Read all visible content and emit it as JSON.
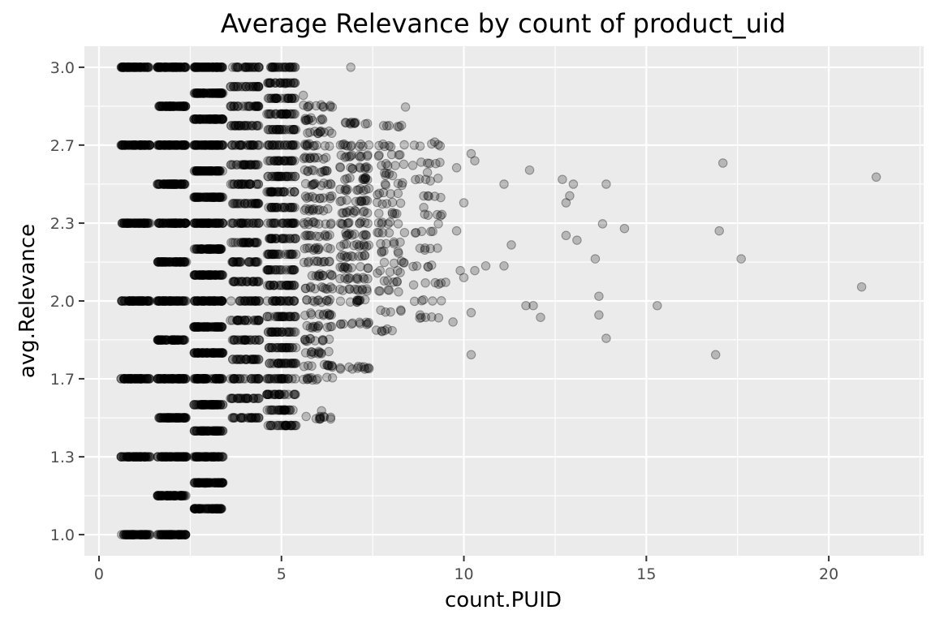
{
  "chart_data": {
    "type": "scatter",
    "title": "Average Relevance by count of product_uid",
    "xlabel": "count.PUID",
    "ylabel": "avg.Relevance",
    "xlim": [
      -0.4,
      22.6
    ],
    "ylim": [
      0.91,
      3.09
    ],
    "x_ticks": [
      0,
      5,
      10,
      15,
      20
    ],
    "x_tick_labels": [
      "0",
      "5",
      "10",
      "15",
      "20"
    ],
    "y_ticks": [
      1.0,
      1.333,
      1.667,
      2.0,
      2.333,
      2.667,
      3.0
    ],
    "y_tick_labels": [
      "1.0",
      "1.3",
      "1.7",
      "2.0",
      "2.3",
      "2.7",
      "3.0"
    ],
    "grid": true,
    "point_color": "#000000",
    "point_opacity": 0.22,
    "jittered_bands": [
      {
        "x_center": 1,
        "levels": [
          1.0,
          1.333,
          1.667,
          2.0,
          2.333,
          2.667,
          3.0
        ],
        "density": "high"
      },
      {
        "x_center": 2,
        "levels": [
          1.0,
          1.167,
          1.333,
          1.5,
          1.667,
          1.833,
          2.0,
          2.167,
          2.333,
          2.5,
          2.667,
          2.833,
          3.0
        ],
        "density": "high"
      },
      {
        "x_center": 3,
        "levels": [
          1.111,
          1.222,
          1.333,
          1.444,
          1.556,
          1.667,
          1.778,
          1.889,
          2.0,
          2.111,
          2.222,
          2.333,
          2.444,
          2.556,
          2.667,
          2.778,
          2.889,
          3.0
        ],
        "density": "high"
      },
      {
        "x_center": 4,
        "levels": [
          1.5,
          1.583,
          1.667,
          1.75,
          1.833,
          1.917,
          2.0,
          2.083,
          2.167,
          2.25,
          2.333,
          2.417,
          2.5,
          2.583,
          2.667,
          2.75,
          2.833,
          2.917,
          3.0
        ],
        "density": "medium"
      },
      {
        "x_center": 5,
        "levels": [
          1.467,
          1.533,
          1.6,
          1.667,
          1.733,
          1.8,
          1.867,
          1.933,
          2.0,
          2.067,
          2.133,
          2.2,
          2.267,
          2.333,
          2.4,
          2.467,
          2.533,
          2.6,
          2.667,
          2.733,
          2.8,
          2.867,
          2.933,
          3.0
        ],
        "density": "medium"
      },
      {
        "x_center": 6,
        "levels": [
          1.5,
          1.667,
          1.722,
          1.778,
          1.833,
          1.889,
          1.944,
          2.0,
          2.056,
          2.111,
          2.167,
          2.222,
          2.278,
          2.333,
          2.389,
          2.444,
          2.5,
          2.556,
          2.611,
          2.667,
          2.722,
          2.778,
          2.833
        ],
        "density": "low"
      },
      {
        "x_center": 7,
        "levels": [
          1.714,
          1.905,
          2.0,
          2.048,
          2.095,
          2.143,
          2.19,
          2.238,
          2.286,
          2.333,
          2.381,
          2.429,
          2.476,
          2.524,
          2.571,
          2.619,
          2.667,
          2.762
        ],
        "density": "low"
      },
      {
        "x_center": 8,
        "levels": [
          1.875,
          1.958,
          2.042,
          2.083,
          2.125,
          2.167,
          2.208,
          2.25,
          2.292,
          2.333,
          2.375,
          2.417,
          2.458,
          2.5,
          2.542,
          2.583,
          2.625,
          2.667,
          2.75
        ],
        "density": "sparse"
      },
      {
        "x_center": 9,
        "levels": [
          1.926,
          2.0,
          2.074,
          2.148,
          2.222,
          2.296,
          2.37,
          2.444,
          2.519,
          2.593,
          2.667
        ],
        "density": "sparse"
      }
    ],
    "points": [
      {
        "x": 5.3,
        "y": 3.0
      },
      {
        "x": 6.9,
        "y": 3.0
      },
      {
        "x": 8.4,
        "y": 2.83
      },
      {
        "x": 7.8,
        "y": 2.75
      },
      {
        "x": 8.0,
        "y": 2.66
      },
      {
        "x": 8.6,
        "y": 2.58
      },
      {
        "x": 9.0,
        "y": 2.55
      },
      {
        "x": 9.2,
        "y": 2.68
      },
      {
        "x": 9.8,
        "y": 2.57
      },
      {
        "x": 10.2,
        "y": 2.63
      },
      {
        "x": 10.3,
        "y": 2.6
      },
      {
        "x": 10.0,
        "y": 2.42
      },
      {
        "x": 9.3,
        "y": 2.33
      },
      {
        "x": 9.8,
        "y": 2.3
      },
      {
        "x": 11.1,
        "y": 2.5
      },
      {
        "x": 11.3,
        "y": 2.24
      },
      {
        "x": 11.8,
        "y": 2.56
      },
      {
        "x": 10.6,
        "y": 2.15
      },
      {
        "x": 11.1,
        "y": 2.15
      },
      {
        "x": 10.3,
        "y": 2.13
      },
      {
        "x": 10.0,
        "y": 2.1
      },
      {
        "x": 9.9,
        "y": 2.13
      },
      {
        "x": 9.5,
        "y": 2.08
      },
      {
        "x": 8.9,
        "y": 2.4
      },
      {
        "x": 8.2,
        "y": 2.33
      },
      {
        "x": 7.9,
        "y": 1.88
      },
      {
        "x": 8.8,
        "y": 1.94
      },
      {
        "x": 9.7,
        "y": 1.91
      },
      {
        "x": 10.2,
        "y": 1.95
      },
      {
        "x": 10.2,
        "y": 1.77
      },
      {
        "x": 11.7,
        "y": 1.98
      },
      {
        "x": 11.9,
        "y": 1.98
      },
      {
        "x": 12.1,
        "y": 1.93
      },
      {
        "x": 12.7,
        "y": 2.52
      },
      {
        "x": 12.9,
        "y": 2.45
      },
      {
        "x": 13.0,
        "y": 2.5
      },
      {
        "x": 12.8,
        "y": 2.42
      },
      {
        "x": 12.8,
        "y": 2.28
      },
      {
        "x": 13.1,
        "y": 2.26
      },
      {
        "x": 13.6,
        "y": 2.18
      },
      {
        "x": 13.7,
        "y": 2.02
      },
      {
        "x": 13.7,
        "y": 1.94
      },
      {
        "x": 13.9,
        "y": 1.84
      },
      {
        "x": 13.9,
        "y": 2.5
      },
      {
        "x": 13.8,
        "y": 2.33
      },
      {
        "x": 14.4,
        "y": 2.31
      },
      {
        "x": 15.3,
        "y": 1.98
      },
      {
        "x": 16.9,
        "y": 1.77
      },
      {
        "x": 17.0,
        "y": 2.3
      },
      {
        "x": 17.1,
        "y": 2.59
      },
      {
        "x": 17.6,
        "y": 2.18
      },
      {
        "x": 20.9,
        "y": 2.06
      },
      {
        "x": 21.3,
        "y": 2.53
      },
      {
        "x": 7.4,
        "y": 1.71
      },
      {
        "x": 6.1,
        "y": 1.53
      },
      {
        "x": 2.9,
        "y": 1.22
      },
      {
        "x": 3.3,
        "y": 1.11
      },
      {
        "x": 3.1,
        "y": 1.11
      },
      {
        "x": 5.1,
        "y": 2.93
      },
      {
        "x": 5.6,
        "y": 2.88
      }
    ]
  }
}
